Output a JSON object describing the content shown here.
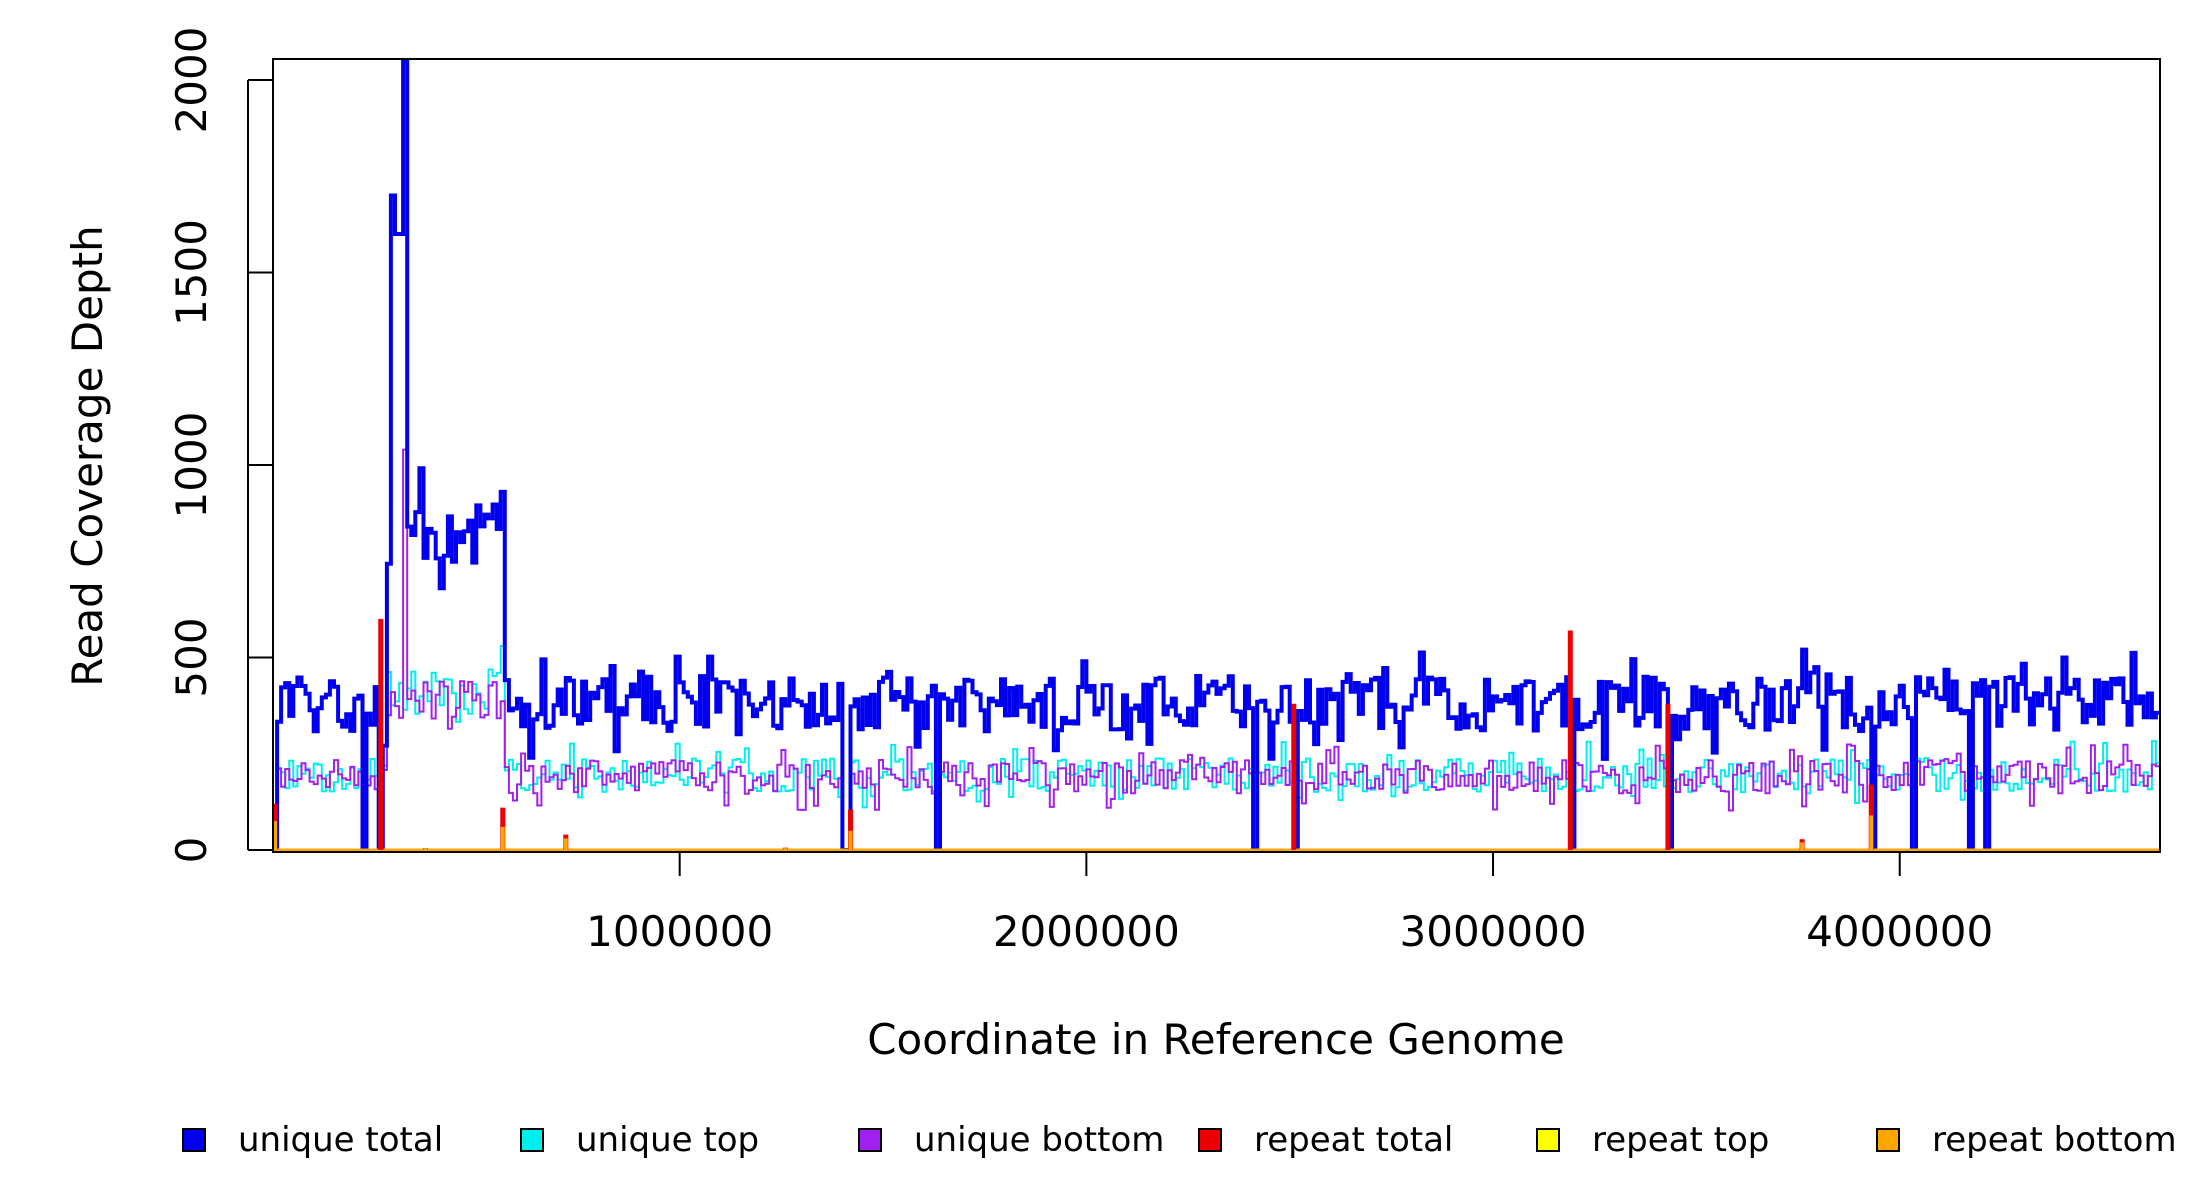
{
  "chart_data": {
    "type": "line",
    "title": "",
    "xlabel": "Coordinate in Reference Genome",
    "ylabel": "Read Coverage Depth",
    "xlim": [
      0,
      4640000
    ],
    "ylim": [
      0,
      2050
    ],
    "xticks": [
      1000000,
      2000000,
      3000000,
      4000000
    ],
    "xtick_labels": [
      "1000000",
      "2000000",
      "3000000",
      "4000000"
    ],
    "yticks": [
      0,
      500,
      1000,
      1500,
      2000
    ],
    "ytick_labels": [
      "0",
      "500",
      "1000",
      "1500",
      "2000"
    ],
    "bin_size": 10000,
    "baselines": {
      "unique_total": {
        "mean": 380,
        "noise": 90
      },
      "unique_top": {
        "mean": 195,
        "noise": 55
      },
      "unique_bottom": {
        "mean": 190,
        "noise": 55
      }
    },
    "segments": [
      {
        "start": 280000,
        "end": 570000,
        "unique_total": 800,
        "unique_top": 410,
        "unique_bottom": 400
      }
    ],
    "peaks": [
      {
        "start": 290000,
        "end": 310000,
        "unique_total": 1700
      },
      {
        "start": 300000,
        "end": 320000,
        "unique_total": 1600
      },
      {
        "start": 320000,
        "end": 330000,
        "unique_total": 2050,
        "unique_bottom": 1040
      },
      {
        "start": 560000,
        "end": 570000,
        "unique_total": 930,
        "unique_top": 530
      }
    ],
    "gaps": [
      0,
      220000,
      260000,
      1400000,
      1410000,
      1630000,
      2410000,
      2510000,
      3190000,
      3430000,
      3930000,
      4030000,
      4170000,
      4210000
    ],
    "repeats": [
      {
        "x": 5000,
        "total": 120,
        "bottom": 75
      },
      {
        "x": 265000,
        "total": 600,
        "bottom": 0
      },
      {
        "x": 375000,
        "total": 5,
        "bottom": 5
      },
      {
        "x": 565000,
        "total": 110,
        "bottom": 60
      },
      {
        "x": 720000,
        "total": 40,
        "bottom": 30
      },
      {
        "x": 1260000,
        "total": 6,
        "bottom": 5
      },
      {
        "x": 1420000,
        "total": 105,
        "bottom": 50
      },
      {
        "x": 2510000,
        "total": 380,
        "bottom": 0
      },
      {
        "x": 3190000,
        "total": 570,
        "bottom": 0
      },
      {
        "x": 3430000,
        "total": 380,
        "bottom": 0
      },
      {
        "x": 3760000,
        "total": 28,
        "bottom": 20
      },
      {
        "x": 3930000,
        "total": 170,
        "bottom": 90
      }
    ],
    "series": [
      {
        "key": "unique_total",
        "name": "unique total",
        "color": "#0000ee"
      },
      {
        "key": "unique_top",
        "name": "unique top",
        "color": "#00eeee"
      },
      {
        "key": "unique_bottom",
        "name": "unique bottom",
        "color": "#a020f0"
      },
      {
        "key": "repeat_total",
        "name": "repeat total",
        "color": "#ee0000"
      },
      {
        "key": "repeat_top",
        "name": "repeat top",
        "color": "#ffff00"
      },
      {
        "key": "repeat_bottom",
        "name": "repeat bottom",
        "color": "#ffa500"
      }
    ],
    "legend_position": "bottom"
  }
}
